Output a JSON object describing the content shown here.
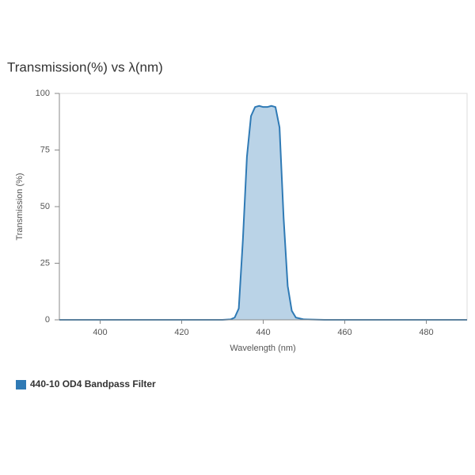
{
  "chart_data": {
    "type": "area",
    "title": "Transmission(%) vs λ(nm)",
    "x_label": "Wavelength (nm)",
    "y_label": "Transmission (%)",
    "x": [
      390,
      430,
      432,
      433,
      434,
      435,
      436,
      437,
      438,
      439,
      440,
      441,
      442,
      443,
      444,
      445,
      446,
      447,
      448,
      450,
      455,
      490
    ],
    "series": [
      {
        "name": "440-10 OD4 Bandpass Filter",
        "color": "#2f7ab5",
        "values": [
          0,
          0,
          0.2,
          1,
          5,
          35,
          72,
          90,
          94,
          94.5,
          94,
          94,
          94.5,
          94,
          85,
          45,
          15,
          4,
          1,
          0.2,
          0,
          0
        ]
      }
    ],
    "xlim": [
      390,
      490
    ],
    "ylim": [
      0,
      100
    ],
    "xticks": [
      400,
      420,
      440,
      460,
      480
    ],
    "yticks": [
      0,
      25,
      50,
      75,
      100
    ],
    "legend": "bottom-left"
  }
}
